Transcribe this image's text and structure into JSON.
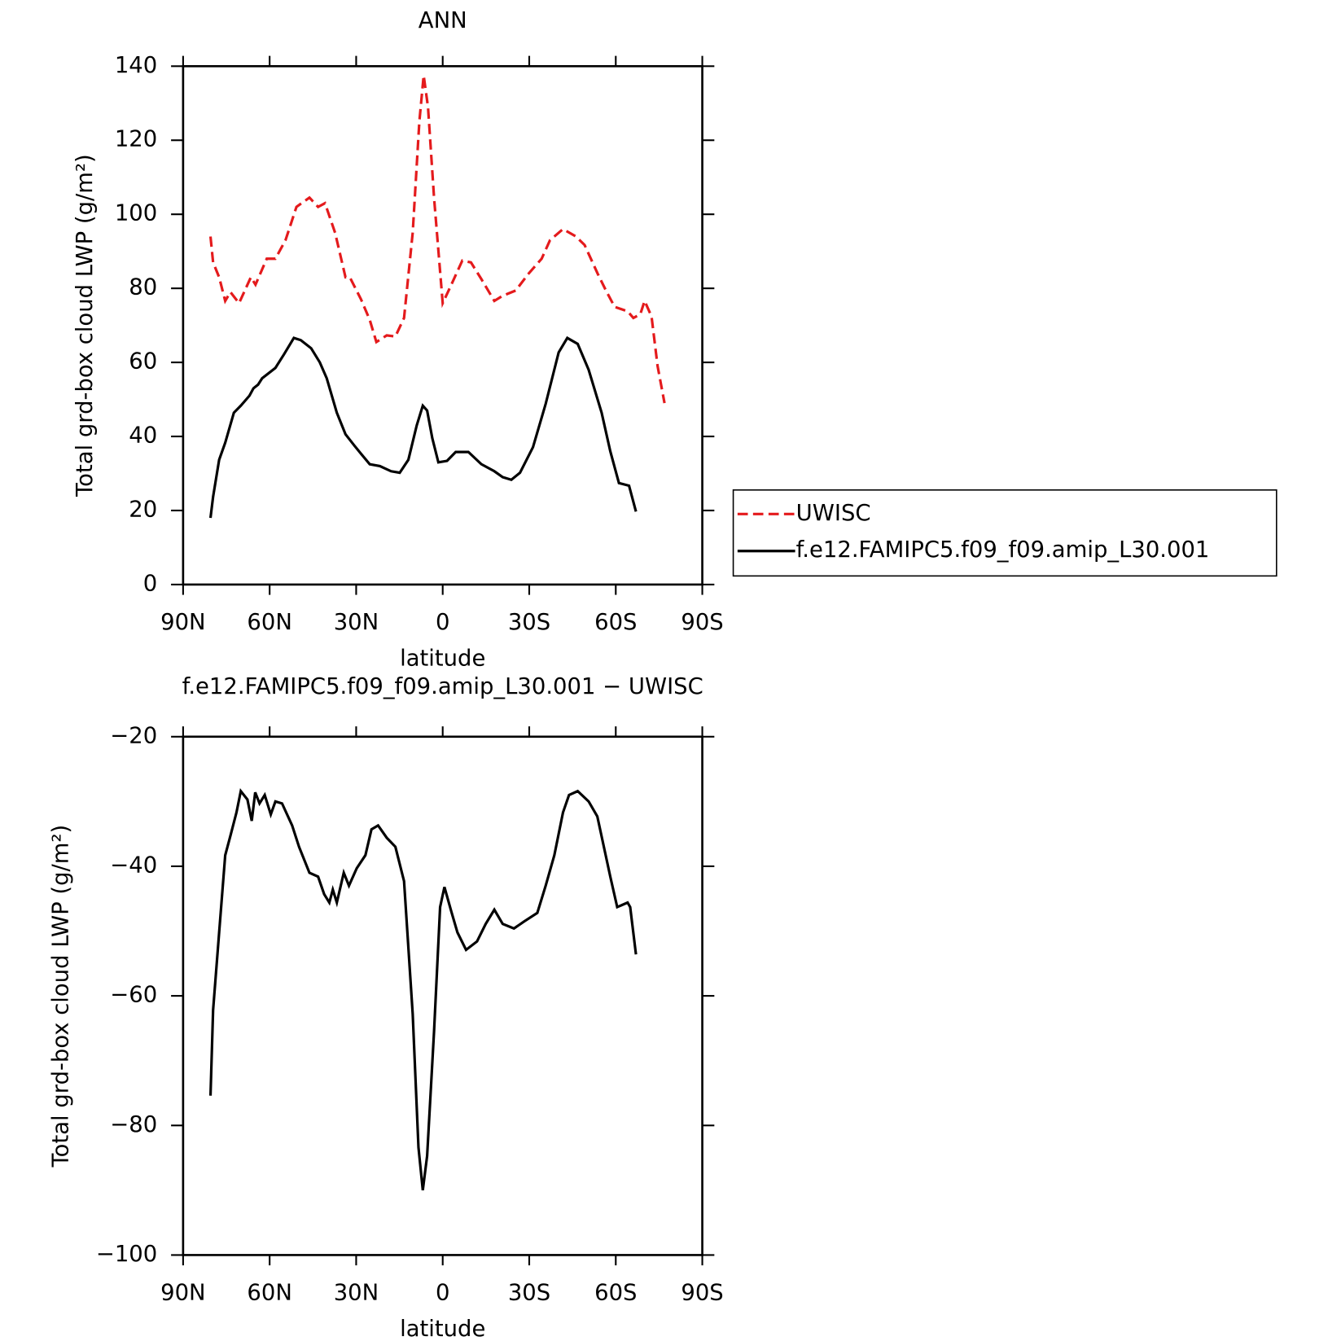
{
  "chart_data": [
    {
      "type": "line",
      "title": "ANN",
      "xlabel": "latitude",
      "ylabel": "Total grd-box cloud LWP (g/m²)",
      "xlim": [
        90,
        -90
      ],
      "xticks": [
        {
          "value": 90,
          "label": "90N"
        },
        {
          "value": 60,
          "label": "60N"
        },
        {
          "value": 30,
          "label": "30N"
        },
        0,
        {
          "value": -30,
          "label": "30S"
        },
        {
          "value": -60,
          "label": "60S"
        },
        {
          "value": -90,
          "label": "90S"
        }
      ],
      "ylim": [
        0,
        140
      ],
      "yticks": [
        0,
        20,
        40,
        60,
        80,
        100,
        120,
        140
      ],
      "legend": "right",
      "series": [
        {
          "name": "UWISC",
          "color": "#e41a1c",
          "dashed": true,
          "x": [
            80.5,
            79.6,
            77.5,
            75.4,
            73.6,
            70.6,
            66.5,
            64.9,
            61,
            58,
            54.5,
            50.7,
            46.2,
            43.2,
            40.8,
            37.3,
            33.7,
            32.2,
            28.3,
            25.3,
            23,
            19.4,
            16.4,
            13.4,
            10.4,
            8.1,
            6.6,
            5.1,
            3,
            0,
            -3,
            -6.8,
            -9.8,
            -13.4,
            -17.9,
            -20.8,
            -25.3,
            -29.8,
            -34.3,
            -37.2,
            -41.7,
            -46.2,
            -49.2,
            -53.7,
            -56.6,
            -59.6,
            -64.1,
            -66.1,
            -68.5,
            -70,
            -72.4,
            -74.5,
            -76.9
          ],
          "values": [
            94,
            87,
            83,
            76.6,
            79,
            76,
            83,
            81,
            88,
            88,
            93,
            102,
            104.5,
            102,
            103,
            95,
            83,
            83,
            77,
            71.5,
            65.5,
            67.3,
            67,
            72,
            95,
            125,
            137.5,
            129,
            104.5,
            76,
            81,
            87.5,
            87,
            82.5,
            76.6,
            78,
            79.4,
            84,
            88,
            93,
            96,
            94,
            91.7,
            84,
            79.4,
            75,
            73.8,
            72,
            73,
            76.6,
            72.4,
            59,
            49
          ]
        },
        {
          "name": "f.e12.FAMIPC5.f09_f09.amip_L30.001",
          "color": "#000000",
          "dashed": false,
          "x": [
            80.5,
            79.6,
            77.5,
            75.4,
            72.4,
            70,
            67,
            65.6,
            64,
            62.6,
            58,
            55,
            51.6,
            49.2,
            45.6,
            42.6,
            40.2,
            36.7,
            33.7,
            30.7,
            28.3,
            25.3,
            21.8,
            17.9,
            14.9,
            11.9,
            9,
            6.9,
            5.4,
            3.6,
            1.5,
            -1.5,
            -4.5,
            -8.9,
            -13.4,
            -17.9,
            -20.8,
            -23.8,
            -26.8,
            -31.3,
            -35.7,
            -40.2,
            -43.2,
            -46.8,
            -50.6,
            -55.1,
            -58.1,
            -61.1,
            -64.6,
            -67
          ],
          "values": [
            18,
            23.7,
            33.7,
            38.3,
            46.4,
            48.3,
            51,
            53,
            54,
            55.7,
            58.5,
            62.2,
            66.6,
            66,
            63.8,
            60,
            55.7,
            46.4,
            40.6,
            37.6,
            35.3,
            32.5,
            32,
            30.6,
            30.2,
            33.7,
            43,
            48.3,
            47,
            39.5,
            33,
            33.4,
            35.8,
            35.8,
            32.5,
            30.6,
            29,
            28.3,
            30.2,
            37.1,
            48.8,
            62.7,
            66.6,
            65,
            58,
            46.4,
            36,
            27.4,
            26.7,
            19.7
          ]
        }
      ]
    },
    {
      "type": "line",
      "title": "f.e12.FAMIPC5.f09_f09.amip_L30.001 − UWISC",
      "xlabel": "latitude",
      "ylabel": "Total grd-box cloud LWP (g/m²)",
      "xlim": [
        90,
        -90
      ],
      "xticks": [
        {
          "value": 90,
          "label": "90N"
        },
        {
          "value": 60,
          "label": "60N"
        },
        {
          "value": 30,
          "label": "30N"
        },
        0,
        {
          "value": -30,
          "label": "30S"
        },
        {
          "value": -60,
          "label": "60S"
        },
        {
          "value": -90,
          "label": "90S"
        }
      ],
      "ylim": [
        -100,
        -20
      ],
      "yticks": [
        {
          "value": -100,
          "label": "−100"
        },
        {
          "value": -80,
          "label": "−80"
        },
        {
          "value": -60,
          "label": "−60"
        },
        {
          "value": -40,
          "label": "−40"
        },
        {
          "value": -20,
          "label": "−20"
        }
      ],
      "series": [
        {
          "color": "#000000",
          "dashed": false,
          "x": [
            80.5,
            79.6,
            77.5,
            75.4,
            73.6,
            71.5,
            70,
            67.7,
            66.2,
            65,
            63.5,
            61.7,
            59.6,
            58,
            55.7,
            52.2,
            49.8,
            46.2,
            43.2,
            41.1,
            39.3,
            38.1,
            36.7,
            34.3,
            32.5,
            29.8,
            26.8,
            24.7,
            22.4,
            19.4,
            16.4,
            13.4,
            10.4,
            8.4,
            6.9,
            5.4,
            3,
            0.9,
            -0.6,
            -3,
            -5.1,
            -8.1,
            -11.9,
            -14.9,
            -17.9,
            -20.8,
            -24.7,
            -28.3,
            -32.8,
            -35.7,
            -38.7,
            -41.7,
            -43.8,
            -46.8,
            -50.6,
            -53.6,
            -58.1,
            -60.5,
            -64.1,
            -65,
            -67
          ],
          "values": [
            -75.4,
            -62.2,
            -50.2,
            -38.3,
            -35.3,
            -31.7,
            -28.4,
            -29.7,
            -33,
            -28.6,
            -30.3,
            -29,
            -32,
            -30,
            -30.3,
            -33.7,
            -37,
            -41,
            -41.6,
            -44.3,
            -45.6,
            -43.6,
            -45.6,
            -41,
            -43,
            -40.3,
            -38.3,
            -34.3,
            -33.7,
            -35.6,
            -37,
            -42.3,
            -62.8,
            -83.4,
            -90,
            -84.7,
            -65.5,
            -46.3,
            -43.2,
            -47,
            -50.2,
            -52.9,
            -51.6,
            -48.9,
            -46.7,
            -48.9,
            -49.6,
            -48.5,
            -47.2,
            -43,
            -38.3,
            -31.7,
            -29,
            -28.4,
            -30,
            -32.3,
            -41.6,
            -46.3,
            -45.6,
            -46.3,
            -53.6
          ]
        }
      ]
    }
  ]
}
